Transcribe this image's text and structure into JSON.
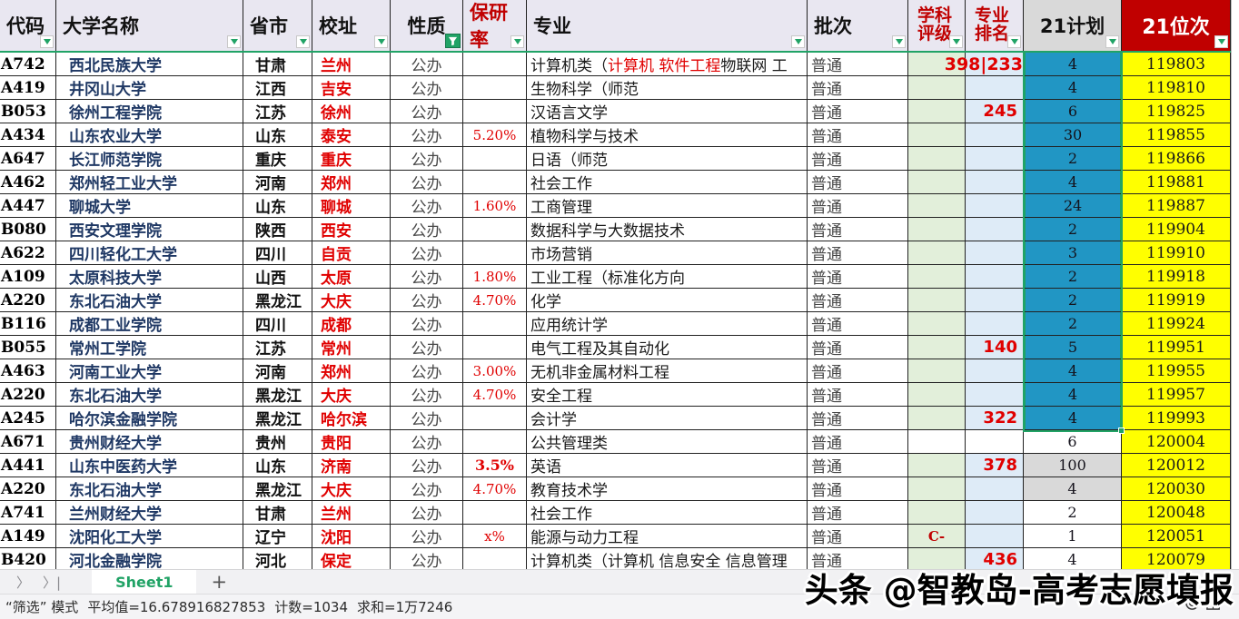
{
  "header": {
    "columns": [
      {
        "label": "代码"
      },
      {
        "label": "大学名称"
      },
      {
        "label": "省市"
      },
      {
        "label": "校址"
      },
      {
        "label": "性质",
        "filter_active": true
      },
      {
        "label": "保研率",
        "red": true
      },
      {
        "label": "专业"
      },
      {
        "label": "批次"
      },
      {
        "label": "学科评级",
        "red": true
      },
      {
        "label": "专业排名",
        "red": true
      },
      {
        "label": "21计划"
      },
      {
        "label": "21位次",
        "inverse": true
      }
    ]
  },
  "colors": {
    "header_bg": "#e9e7f1",
    "accent_green": "#21a366",
    "red_header": "#c00000",
    "eval_bg": "#e2efda",
    "rank_bg": "#deebf7",
    "plan_selected_bg": "#2196c4",
    "plan_gray_bg": "#d9d9d9",
    "rank21_bg": "#ffff00",
    "name_color": "#1f3864",
    "city_color": "#e00000"
  },
  "rows": [
    {
      "code": "A742",
      "name": "西北民族大学",
      "province": "甘肃",
      "city": "兰州",
      "nature": "公办",
      "rate": "",
      "major": [
        {
          "t": "计算机类（"
        },
        {
          "t": "计算机 软件工程",
          "red": true
        },
        {
          "t": " 物联网 工"
        }
      ],
      "batch": "普通",
      "eval": "",
      "rank": "",
      "rank_overflow": "398|233",
      "plan": "4",
      "rank21": "119803",
      "plan_bg": "teal",
      "colored": true
    },
    {
      "code": "A419",
      "name": "井冈山大学",
      "province": "江西",
      "city": "吉安",
      "nature": "公办",
      "rate": "",
      "major": [
        {
          "t": "生物科学（师范"
        }
      ],
      "batch": "普通",
      "eval": "",
      "rank": "",
      "plan": "4",
      "rank21": "119810",
      "plan_bg": "teal",
      "colored": true
    },
    {
      "code": "B053",
      "name": "徐州工程学院",
      "province": "江苏",
      "city": "徐州",
      "nature": "公办",
      "rate": "",
      "major": [
        {
          "t": "汉语言文学"
        }
      ],
      "batch": "普通",
      "eval": "",
      "rank": "245",
      "plan": "6",
      "rank21": "119825",
      "plan_bg": "teal",
      "colored": true
    },
    {
      "code": "A434",
      "name": "山东农业大学",
      "province": "山东",
      "city": "泰安",
      "nature": "公办",
      "rate": "5.20%",
      "major": [
        {
          "t": "植物科学与技术"
        }
      ],
      "batch": "普通",
      "eval": "",
      "rank": "",
      "plan": "30",
      "rank21": "119855",
      "plan_bg": "teal",
      "colored": true
    },
    {
      "code": "A647",
      "name": "长江师范学院",
      "province": "重庆",
      "city": "重庆",
      "nature": "公办",
      "rate": "",
      "major": [
        {
          "t": "日语（师范"
        }
      ],
      "batch": "普通",
      "eval": "",
      "rank": "",
      "plan": "2",
      "rank21": "119866",
      "plan_bg": "teal",
      "colored": true
    },
    {
      "code": "A462",
      "name": "郑州轻工业大学",
      "province": "河南",
      "city": "郑州",
      "nature": "公办",
      "rate": "",
      "major": [
        {
          "t": "社会工作"
        }
      ],
      "batch": "普通",
      "eval": "",
      "rank": "",
      "plan": "4",
      "rank21": "119881",
      "plan_bg": "teal",
      "colored": true
    },
    {
      "code": "A447",
      "name": "聊城大学",
      "province": "山东",
      "city": "聊城",
      "nature": "公办",
      "rate": "1.60%",
      "major": [
        {
          "t": "工商管理"
        }
      ],
      "batch": "普通",
      "eval": "",
      "rank": "",
      "plan": "24",
      "rank21": "119887",
      "plan_bg": "teal",
      "colored": true
    },
    {
      "code": "B080",
      "name": "西安文理学院",
      "province": "陕西",
      "city": "西安",
      "nature": "公办",
      "rate": "",
      "major": [
        {
          "t": "数据科学与大数据技术"
        }
      ],
      "batch": "普通",
      "eval": "",
      "rank": "",
      "plan": "2",
      "rank21": "119904",
      "plan_bg": "teal",
      "colored": true
    },
    {
      "code": "A622",
      "name": "四川轻化工大学",
      "province": "四川",
      "city": "自贡",
      "nature": "公办",
      "rate": "",
      "major": [
        {
          "t": "市场营销"
        }
      ],
      "batch": "普通",
      "eval": "",
      "rank": "",
      "plan": "3",
      "rank21": "119910",
      "plan_bg": "teal",
      "colored": true
    },
    {
      "code": "A109",
      "name": "太原科技大学",
      "province": "山西",
      "city": "太原",
      "nature": "公办",
      "rate": "1.80%",
      "major": [
        {
          "t": "工业工程（标准化方向"
        }
      ],
      "batch": "普通",
      "eval": "",
      "rank": "",
      "plan": "2",
      "rank21": "119918",
      "plan_bg": "teal",
      "colored": true
    },
    {
      "code": "A220",
      "name": "东北石油大学",
      "province": "黑龙江",
      "city": "大庆",
      "nature": "公办",
      "rate": "4.70%",
      "major": [
        {
          "t": "化学"
        }
      ],
      "batch": "普通",
      "eval": "",
      "rank": "",
      "plan": "2",
      "rank21": "119919",
      "plan_bg": "teal",
      "colored": true
    },
    {
      "code": "B116",
      "name": "成都工业学院",
      "province": "四川",
      "city": "成都",
      "nature": "公办",
      "rate": "",
      "major": [
        {
          "t": "应用统计学"
        }
      ],
      "batch": "普通",
      "eval": "",
      "rank": "",
      "plan": "2",
      "rank21": "119924",
      "plan_bg": "teal",
      "colored": true
    },
    {
      "code": "B055",
      "name": "常州工学院",
      "province": "江苏",
      "city": "常州",
      "nature": "公办",
      "rate": "",
      "major": [
        {
          "t": "电气工程及其自动化"
        }
      ],
      "batch": "普通",
      "eval": "",
      "rank": "140",
      "plan": "5",
      "rank21": "119951",
      "plan_bg": "teal",
      "colored": true
    },
    {
      "code": "A463",
      "name": "河南工业大学",
      "province": "河南",
      "city": "郑州",
      "nature": "公办",
      "rate": "3.00%",
      "major": [
        {
          "t": "无机非金属材料工程"
        }
      ],
      "batch": "普通",
      "eval": "",
      "rank": "",
      "plan": "4",
      "rank21": "119955",
      "plan_bg": "teal",
      "colored": true
    },
    {
      "code": "A220",
      "name": "东北石油大学",
      "province": "黑龙江",
      "city": "大庆",
      "nature": "公办",
      "rate": "4.70%",
      "major": [
        {
          "t": "安全工程"
        }
      ],
      "batch": "普通",
      "eval": "",
      "rank": "",
      "plan": "4",
      "rank21": "119957",
      "plan_bg": "teal",
      "colored": true
    },
    {
      "code": "A245",
      "name": "哈尔滨金融学院",
      "province": "黑龙江",
      "city": "哈尔滨",
      "nature": "公办",
      "rate": "",
      "major": [
        {
          "t": "会计学"
        }
      ],
      "batch": "普通",
      "eval": "",
      "rank": "322",
      "plan": "4",
      "rank21": "119993",
      "plan_bg": "teal",
      "colored": true
    },
    {
      "code": "A671",
      "name": "贵州财经大学",
      "province": "贵州",
      "city": "贵阳",
      "nature": "公办",
      "rate": "",
      "major": [
        {
          "t": "公共管理类"
        }
      ],
      "batch": "普通",
      "eval": "",
      "rank": "",
      "plan": "6",
      "rank21": "120004",
      "plan_bg": "white",
      "colored": false
    },
    {
      "code": "A441",
      "name": "山东中医药大学",
      "province": "山东",
      "city": "济南",
      "nature": "公办",
      "rate": "3.5%",
      "rate_bold": true,
      "major": [
        {
          "t": "英语"
        }
      ],
      "batch": "普通",
      "eval": "",
      "rank": "378",
      "plan": "100",
      "rank21": "120012",
      "plan_bg": "gray",
      "colored": true
    },
    {
      "code": "A220",
      "name": "东北石油大学",
      "province": "黑龙江",
      "city": "大庆",
      "nature": "公办",
      "rate": "4.70%",
      "major": [
        {
          "t": "教育技术学"
        }
      ],
      "batch": "普通",
      "eval": "",
      "rank": "",
      "plan": "4",
      "rank21": "120030",
      "plan_bg": "gray",
      "colored": true
    },
    {
      "code": "A741",
      "name": "兰州财经大学",
      "province": "甘肃",
      "city": "兰州",
      "nature": "公办",
      "rate": "",
      "major": [
        {
          "t": "社会工作"
        }
      ],
      "batch": "普通",
      "eval": "",
      "rank": "",
      "plan": "2",
      "rank21": "120048",
      "plan_bg": "white",
      "colored": true
    },
    {
      "code": "A149",
      "name": "沈阳化工大学",
      "province": "辽宁",
      "city": "沈阳",
      "nature": "公办",
      "rate": "x%",
      "major": [
        {
          "t": "能源与动力工程"
        }
      ],
      "batch": "普通",
      "eval": "C-",
      "rank": "",
      "plan": "1",
      "rank21": "120051",
      "plan_bg": "white",
      "colored": true
    },
    {
      "code": "B420",
      "name": "河北金融学院",
      "province": "河北",
      "city": "保定",
      "nature": "公办",
      "rate": "",
      "major": [
        {
          "t": "计算机类（计算机 信息安全 信息管理"
        }
      ],
      "batch": "普通",
      "eval": "",
      "rank": "436",
      "plan": "4",
      "rank21": "120079",
      "plan_bg": "white",
      "colored": true
    }
  ],
  "tabbar": {
    "nav_next": "〉",
    "nav_last": "〉|",
    "sheet_name": "Sheet1",
    "add_label": "+"
  },
  "statusbar": {
    "mode": "“筛选” 模式",
    "average": "平均值=16.678916827853",
    "count": "计数=1034",
    "sum": "求和=1万7246"
  },
  "watermark": "头条 @智教岛-高考志愿填报"
}
